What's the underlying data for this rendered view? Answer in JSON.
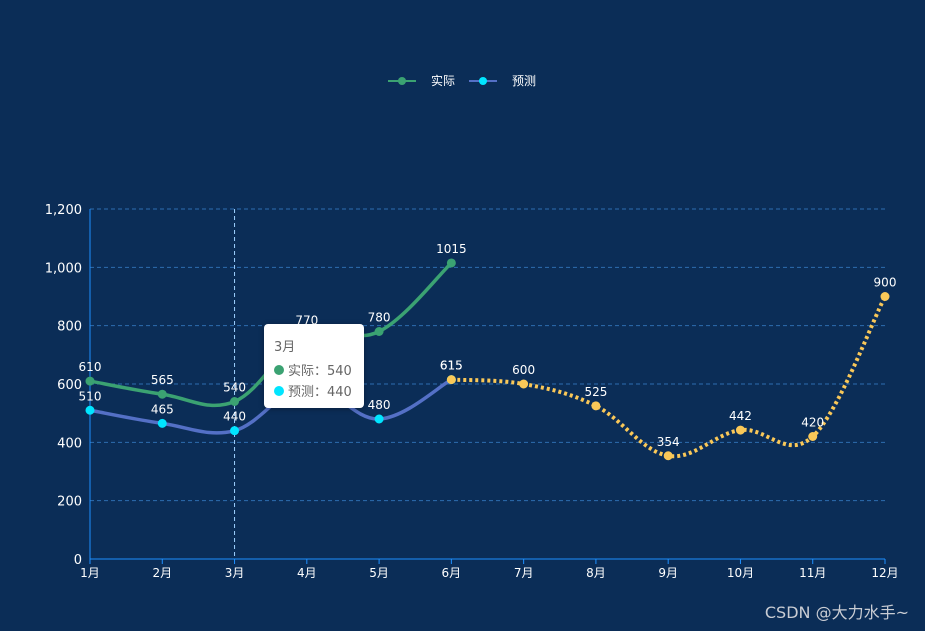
{
  "chart_data": {
    "type": "line",
    "categories": [
      "1月",
      "2月",
      "3月",
      "4月",
      "5月",
      "6月",
      "7月",
      "8月",
      "9月",
      "10月",
      "11月",
      "12月"
    ],
    "ylim": [
      0,
      1200
    ],
    "yticks": [
      0,
      200,
      400,
      600,
      800,
      1000,
      1200
    ],
    "ytick_labels": [
      "0",
      "200",
      "400",
      "600",
      "800",
      "1,000",
      "1,200"
    ],
    "grid": true,
    "legend_position": "top-center",
    "series": [
      {
        "name": "实际",
        "color": "#3ba272",
        "values": [
          610,
          565,
          540,
          770,
          780,
          1015,
          null,
          null,
          null,
          null,
          null,
          null
        ]
      },
      {
        "name": "预测",
        "color": "#5470c6",
        "marker_color": "#00e5ff",
        "values": [
          510,
          465,
          440,
          595,
          480,
          615,
          null,
          null,
          null,
          null,
          null,
          null
        ]
      },
      {
        "name": "",
        "color": "#fac858",
        "dashed": true,
        "values": [
          null,
          null,
          null,
          null,
          null,
          615,
          600,
          525,
          354,
          442,
          420,
          900
        ]
      }
    ]
  },
  "tooltip": {
    "title": "3月",
    "rows": [
      {
        "label": "实际：540",
        "color": "#3ba272"
      },
      {
        "label": "预测：440",
        "color": "#00e5ff"
      }
    ]
  },
  "watermark": "CSDN @大力水手~"
}
